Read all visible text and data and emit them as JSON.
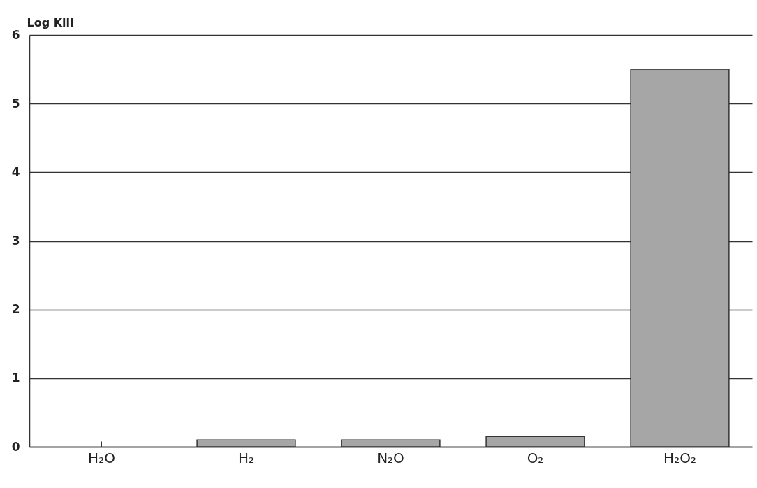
{
  "chart_data": {
    "type": "bar",
    "ylabel": "Log Kill",
    "categories": [
      "H₂O",
      "H₂",
      "N₂O",
      "O₂",
      "H₂O₂"
    ],
    "values": [
      0,
      0.1,
      0.1,
      0.15,
      5.5
    ],
    "color": "#a6a6a6",
    "ylim": [
      0,
      6
    ],
    "yticks": [
      0,
      1,
      2,
      3,
      4,
      5,
      6
    ],
    "grid": "y"
  }
}
